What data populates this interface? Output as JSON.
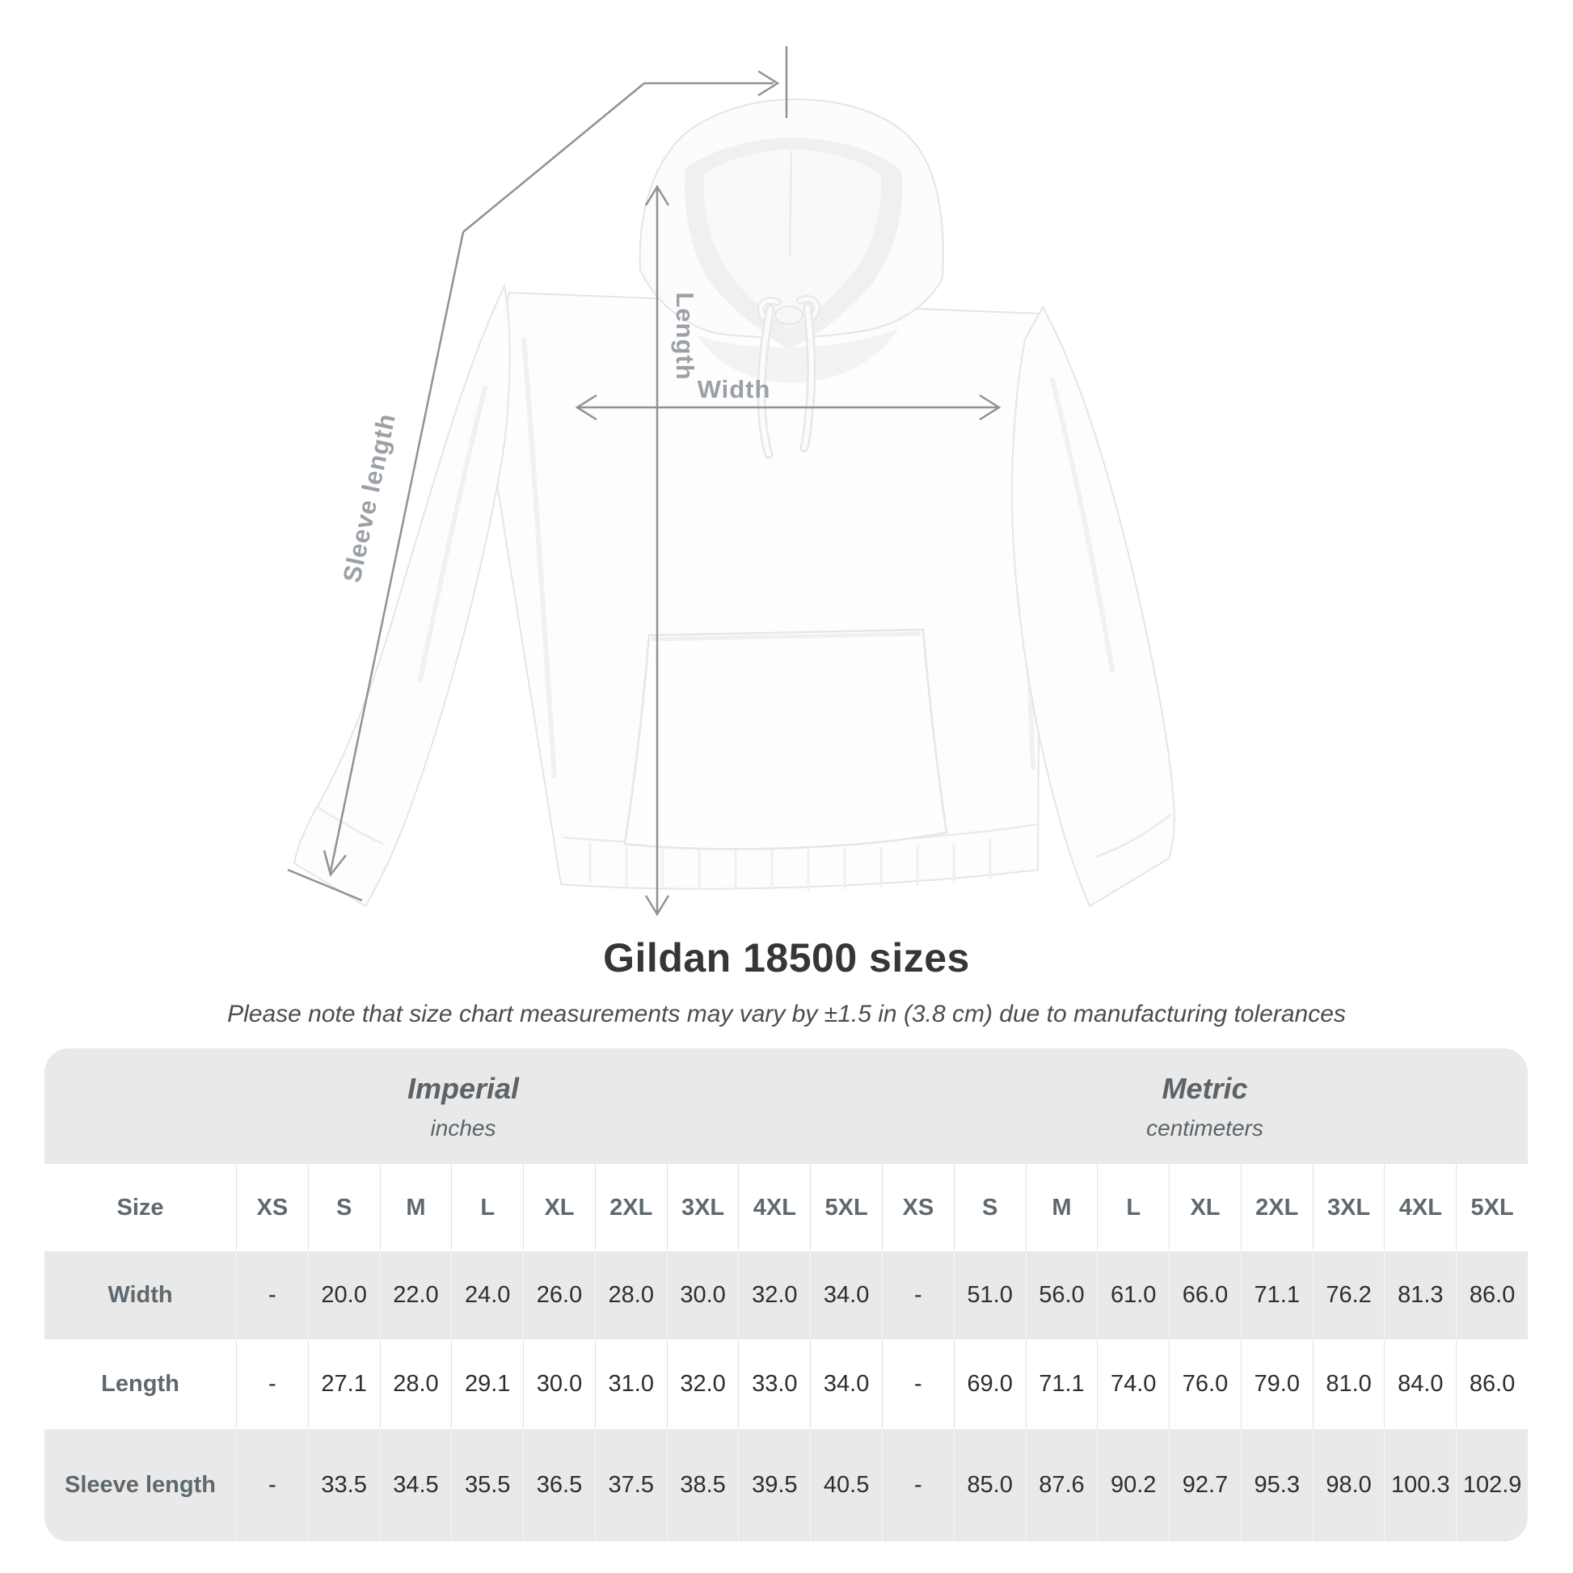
{
  "diagram": {
    "labels": {
      "sleeve_length": "Sleeve length",
      "length": "Length",
      "width": "Width"
    }
  },
  "title": "Gildan 18500 sizes",
  "subtitle": "Please note that size chart measurements may vary by ±1.5 in (3.8 cm) due to manufacturing tolerances",
  "table": {
    "size_header": "Size",
    "unit_groups": [
      {
        "label": "Imperial",
        "sublabel": "inches"
      },
      {
        "label": "Metric",
        "sublabel": "centimeters"
      }
    ],
    "sizes": [
      "XS",
      "S",
      "M",
      "L",
      "XL",
      "2XL",
      "3XL",
      "4XL",
      "5XL"
    ],
    "rows": [
      {
        "label": "Width",
        "imperial": [
          "-",
          "20.0",
          "22.0",
          "24.0",
          "26.0",
          "28.0",
          "30.0",
          "32.0",
          "34.0"
        ],
        "metric": [
          "-",
          "51.0",
          "56.0",
          "61.0",
          "66.0",
          "71.1",
          "76.2",
          "81.3",
          "86.0"
        ]
      },
      {
        "label": "Length",
        "imperial": [
          "-",
          "27.1",
          "28.0",
          "29.1",
          "30.0",
          "31.0",
          "32.0",
          "33.0",
          "34.0"
        ],
        "metric": [
          "-",
          "69.0",
          "71.1",
          "74.0",
          "76.0",
          "79.0",
          "81.0",
          "84.0",
          "86.0"
        ]
      },
      {
        "label": "Sleeve length",
        "imperial": [
          "-",
          "33.5",
          "34.5",
          "35.5",
          "36.5",
          "37.5",
          "38.5",
          "39.5",
          "40.5"
        ],
        "metric": [
          "-",
          "85.0",
          "87.6",
          "90.2",
          "92.7",
          "95.3",
          "98.0",
          "100.3",
          "102.9"
        ]
      }
    ]
  },
  "colors": {
    "band_gray": "#e9e9e9",
    "dimension_line": "#8d9297",
    "diagram_label": "#9aa0a5",
    "header_text": "#5f686e",
    "value_text": "#2b2e30"
  }
}
